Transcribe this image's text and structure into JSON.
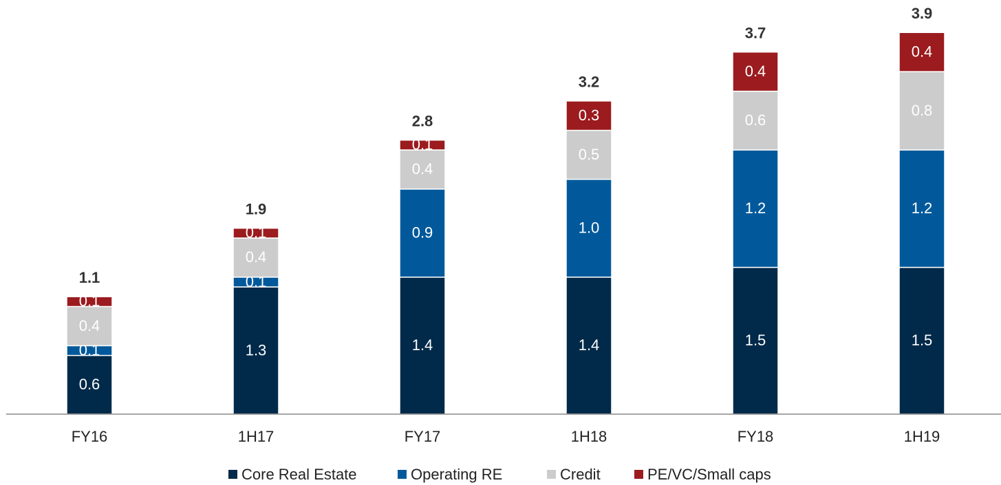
{
  "chart_data": {
    "type": "stacked_bar",
    "categories": [
      "FY16",
      "1H17",
      "FY17",
      "1H18",
      "FY18",
      "1H19"
    ],
    "series": [
      {
        "name": "Core Real Estate",
        "color": "#012a4a",
        "values": [
          0.6,
          1.3,
          1.4,
          1.4,
          1.5,
          1.5
        ]
      },
      {
        "name": "Operating RE",
        "color": "#01599b",
        "values": [
          0.1,
          0.1,
          0.9,
          1.0,
          1.2,
          1.2
        ],
        "value_labels": [
          "0.1",
          "0.1",
          "0.9",
          "1.0",
          "1.2",
          "1.2"
        ]
      },
      {
        "name": "Credit",
        "color": "#cccccc",
        "values": [
          0.4,
          0.4,
          0.4,
          0.5,
          0.6,
          0.8
        ]
      },
      {
        "name": "PE/VC/Small caps",
        "color": "#9b1b1e",
        "values": [
          0.1,
          0.1,
          0.1,
          0.3,
          0.4,
          0.4
        ]
      }
    ],
    "totals": [
      1.1,
      1.9,
      2.8,
      3.2,
      3.7,
      3.9
    ],
    "ylim": [
      0,
      4
    ],
    "legend": "bottom"
  }
}
